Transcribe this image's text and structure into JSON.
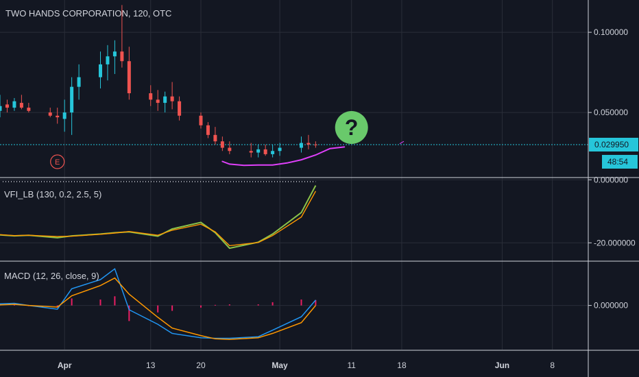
{
  "header": {
    "title": "TWO HANDS CORPORATION, 120, OTC"
  },
  "price_pane": {
    "y_ticks": [
      {
        "value": 0.1,
        "label": "0.100000"
      },
      {
        "value": 0.05,
        "label": "0.050000"
      }
    ],
    "last_price_label": "0.029950",
    "countdown_label": "48:54",
    "earnings_marker": "E",
    "annotation": "?",
    "colors": {
      "up": "#26c6da",
      "down": "#ef5350",
      "price_line": "#26c6da",
      "drawing": "#e040fb",
      "question_bubble": "#69c96b"
    }
  },
  "vfi_pane": {
    "label": "VFI_LB (130, 0.2, 2.5, 5)",
    "y_ticks": [
      {
        "value": 0,
        "label": "0.000000"
      },
      {
        "value": -20,
        "label": "-20.000000"
      }
    ],
    "colors": {
      "vfi": "#8bc34a",
      "signal": "#ff9800"
    }
  },
  "macd_pane": {
    "label": "MACD (12, 26, close, 9)",
    "y_ticks": [
      {
        "value": 0,
        "label": "0.000000"
      }
    ],
    "colors": {
      "macd": "#2196f3",
      "signal": "#ff9800",
      "histogram": "#e91e63"
    }
  },
  "x_axis": {
    "labels": [
      "Apr",
      "13",
      "20",
      "May",
      "11",
      "18",
      "Jun",
      "8"
    ]
  },
  "chart_data": [
    {
      "type": "candlestick",
      "title": "TWO HANDS CORPORATION, 120, OTC",
      "x_range": [
        "Mar 23",
        "Jun 13"
      ],
      "ylim": [
        0.012,
        0.118
      ],
      "candles": [
        {
          "date": "Mar 23",
          "open": 0.051,
          "high": 0.061,
          "low": 0.047,
          "close": 0.054
        },
        {
          "date": "Mar 24",
          "open": 0.055,
          "high": 0.058,
          "low": 0.05,
          "close": 0.053
        },
        {
          "date": "Mar 25",
          "open": 0.053,
          "high": 0.059,
          "low": 0.051,
          "close": 0.057
        },
        {
          "date": "Mar 26",
          "open": 0.056,
          "high": 0.061,
          "low": 0.052,
          "close": 0.053
        },
        {
          "date": "Mar 27",
          "open": 0.053,
          "high": 0.056,
          "low": 0.05,
          "close": 0.051
        },
        {
          "date": "Mar 30",
          "open": 0.05,
          "high": 0.053,
          "low": 0.047,
          "close": 0.048
        },
        {
          "date": "Mar 31",
          "open": 0.048,
          "high": 0.053,
          "low": 0.043,
          "close": 0.047
        },
        {
          "date": "Apr 1",
          "open": 0.046,
          "high": 0.058,
          "low": 0.038,
          "close": 0.05
        },
        {
          "date": "Apr 2",
          "open": 0.05,
          "high": 0.072,
          "low": 0.036,
          "close": 0.066
        },
        {
          "date": "Apr 3",
          "open": 0.066,
          "high": 0.08,
          "low": 0.058,
          "close": 0.072
        },
        {
          "date": "Apr 6",
          "open": 0.072,
          "high": 0.088,
          "low": 0.065,
          "close": 0.08
        },
        {
          "date": "Apr 7",
          "open": 0.08,
          "high": 0.092,
          "low": 0.07,
          "close": 0.085
        },
        {
          "date": "Apr 8",
          "open": 0.085,
          "high": 0.095,
          "low": 0.074,
          "close": 0.088
        },
        {
          "date": "Apr 9",
          "open": 0.088,
          "high": 0.117,
          "low": 0.078,
          "close": 0.082
        },
        {
          "date": "Apr 10",
          "open": 0.082,
          "high": 0.091,
          "low": 0.058,
          "close": 0.062
        },
        {
          "date": "Apr 13",
          "open": 0.062,
          "high": 0.067,
          "low": 0.054,
          "close": 0.058
        },
        {
          "date": "Apr 14",
          "open": 0.058,
          "high": 0.064,
          "low": 0.051,
          "close": 0.056
        },
        {
          "date": "Apr 15",
          "open": 0.056,
          "high": 0.063,
          "low": 0.05,
          "close": 0.06
        },
        {
          "date": "Apr 16",
          "open": 0.06,
          "high": 0.069,
          "low": 0.052,
          "close": 0.057
        },
        {
          "date": "Apr 17",
          "open": 0.057,
          "high": 0.06,
          "low": 0.045,
          "close": 0.048
        },
        {
          "date": "Apr 20",
          "open": 0.048,
          "high": 0.05,
          "low": 0.04,
          "close": 0.042
        },
        {
          "date": "Apr 21",
          "open": 0.042,
          "high": 0.044,
          "low": 0.034,
          "close": 0.036
        },
        {
          "date": "Apr 22",
          "open": 0.036,
          "high": 0.041,
          "low": 0.03,
          "close": 0.032
        },
        {
          "date": "Apr 23",
          "open": 0.032,
          "high": 0.035,
          "low": 0.026,
          "close": 0.028
        },
        {
          "date": "Apr 24",
          "open": 0.028,
          "high": 0.032,
          "low": 0.024,
          "close": 0.026
        },
        {
          "date": "Apr 27",
          "open": 0.026,
          "high": 0.031,
          "low": 0.022,
          "close": 0.025
        },
        {
          "date": "Apr 28",
          "open": 0.025,
          "high": 0.03,
          "low": 0.022,
          "close": 0.027
        },
        {
          "date": "Apr 29",
          "open": 0.027,
          "high": 0.03,
          "low": 0.023,
          "close": 0.024
        },
        {
          "date": "Apr 30",
          "open": 0.024,
          "high": 0.03,
          "low": 0.022,
          "close": 0.026
        },
        {
          "date": "May 1",
          "open": 0.026,
          "high": 0.031,
          "low": 0.023,
          "close": 0.028
        },
        {
          "date": "May 4",
          "open": 0.028,
          "high": 0.035,
          "low": 0.025,
          "close": 0.031
        },
        {
          "date": "May 5",
          "open": 0.031,
          "high": 0.036,
          "low": 0.027,
          "close": 0.03
        },
        {
          "date": "May 6",
          "open": 0.03,
          "high": 0.032,
          "low": 0.028,
          "close": 0.02995
        }
      ],
      "last_price": 0.02995
    },
    {
      "type": "line",
      "title": "VFI_LB (130, 0.2, 2.5, 5)",
      "ylim": [
        -25.6,
        0.5
      ],
      "x": [
        "Mar 23",
        "Mar 25",
        "Mar 27",
        "Mar 31",
        "Apr 2",
        "Apr 6",
        "Apr 8",
        "Apr 10",
        "Apr 14",
        "Apr 16",
        "Apr 20",
        "Apr 22",
        "Apr 24",
        "Apr 28",
        "Apr 30",
        "May 4",
        "May 6"
      ],
      "series": [
        {
          "values": [
            -17.5,
            -17.8,
            -17.6,
            -18.4,
            -17.8,
            -17.2,
            -16.8,
            -16.5,
            -17.9,
            -15.6,
            -13.5,
            -16.8,
            -21.7,
            -19.8,
            -17.2,
            -10.4,
            -1.8
          ]
        },
        {
          "values": [
            -17.4,
            -17.7,
            -17.6,
            -18.0,
            -17.9,
            -17.3,
            -16.9,
            -16.4,
            -17.6,
            -16.0,
            -14.1,
            -16.5,
            -20.9,
            -19.9,
            -17.7,
            -11.8,
            -3.6
          ]
        }
      ]
    },
    {
      "type": "line",
      "title": "MACD (12, 26, close, 9)",
      "ylim": [
        -0.0082,
        0.0081
      ],
      "x": [
        "Mar 23",
        "Mar 25",
        "Mar 27",
        "Mar 31",
        "Apr 2",
        "Apr 6",
        "Apr 8",
        "Apr 10",
        "Apr 14",
        "Apr 16",
        "Apr 20",
        "Apr 22",
        "Apr 24",
        "Apr 28",
        "Apr 30",
        "May 4",
        "May 6"
      ],
      "series": [
        {
          "values": [
            0.0003,
            0.0004,
            0.0,
            -0.0007,
            0.0031,
            0.0048,
            0.0068,
            -0.0008,
            -0.0035,
            -0.0052,
            -0.006,
            -0.0061,
            -0.0061,
            -0.0058,
            -0.0046,
            -0.0021,
            0.001
          ]
        },
        {
          "values": [
            0.0001,
            0.0002,
            0.0,
            -0.0003,
            0.0018,
            0.0037,
            0.0051,
            0.0021,
            -0.0022,
            -0.0042,
            -0.0056,
            -0.0062,
            -0.0063,
            -0.006,
            -0.0052,
            -0.0032,
            0.0
          ]
        },
        {
          "type": "bar",
          "values": [
            0.0002,
            0.0002,
            0.0,
            -0.0004,
            0.0013,
            0.0011,
            0.0017,
            -0.0029,
            -0.0013,
            -0.001,
            -0.0004,
            0.0001,
            0.0002,
            0.0002,
            0.0006,
            0.0011,
            0.001
          ]
        }
      ]
    }
  ]
}
